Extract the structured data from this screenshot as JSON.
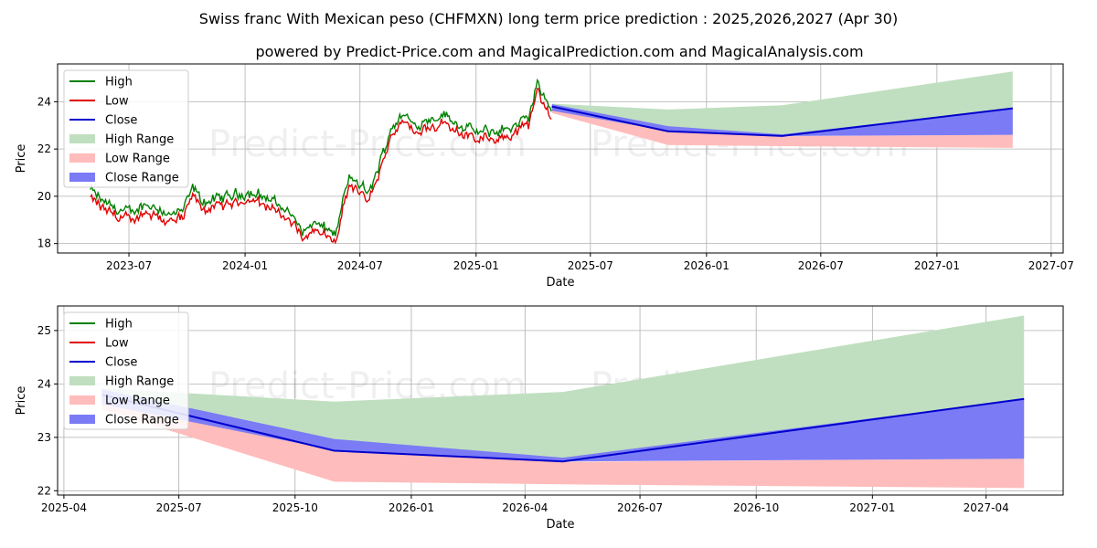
{
  "title": "Swiss franc With Mexican peso (CHFMXN) long term price prediction : 2025,2026,2027 (Apr 30)",
  "subtitle": "powered by Predict-Price.com and MagicalPrediction.com and MagicalAnalysis.com",
  "watermark": "Predict-Price.com",
  "colors": {
    "high": "#008000",
    "low": "#e00000",
    "close": "#0000cc",
    "high_range": "#c0dfc0",
    "low_range": "#ffbcbc",
    "close_range": "#7b7bf5",
    "grid": "#b0b0b0"
  },
  "legend": [
    "High",
    "Low",
    "Close",
    "High Range",
    "Low Range",
    "Close Range"
  ],
  "chart_data": [
    {
      "type": "line",
      "xlabel": "Date",
      "ylabel": "Price",
      "xlim": [
        "2023-03-10",
        "2027-07-20"
      ],
      "ylim": [
        17.6,
        25.6
      ],
      "x_ticks": [
        "2023-07",
        "2024-01",
        "2024-07",
        "2025-01",
        "2025-07",
        "2026-01",
        "2026-07",
        "2027-01",
        "2027-07"
      ],
      "y_ticks": [
        18,
        20,
        22,
        24
      ],
      "grid": true,
      "legend_position": "top-left",
      "history_anchors": [
        [
          "2023-05-01",
          20.1
        ],
        [
          "2023-05-20",
          19.6
        ],
        [
          "2023-06-10",
          19.3
        ],
        [
          "2023-07-05",
          19.1
        ],
        [
          "2023-07-25",
          19.5
        ],
        [
          "2023-08-15",
          19.4
        ],
        [
          "2023-09-05",
          19.0
        ],
        [
          "2023-09-25",
          19.2
        ],
        [
          "2023-10-10",
          20.2
        ],
        [
          "2023-10-25",
          19.6
        ],
        [
          "2023-11-20",
          19.7
        ],
        [
          "2023-12-15",
          19.9
        ],
        [
          "2024-01-10",
          20.0
        ],
        [
          "2024-02-10",
          19.7
        ],
        [
          "2024-03-10",
          19.2
        ],
        [
          "2024-03-25",
          18.6
        ],
        [
          "2024-04-05",
          18.3
        ],
        [
          "2024-04-15",
          18.7
        ],
        [
          "2024-05-10",
          18.4
        ],
        [
          "2024-05-25",
          18.3
        ],
        [
          "2024-06-05",
          19.8
        ],
        [
          "2024-06-15",
          20.6
        ],
        [
          "2024-07-01",
          20.3
        ],
        [
          "2024-07-15",
          19.9
        ],
        [
          "2024-08-05",
          21.5
        ],
        [
          "2024-08-20",
          22.8
        ],
        [
          "2024-09-10",
          23.3
        ],
        [
          "2024-09-25",
          22.8
        ],
        [
          "2024-10-15",
          23.1
        ],
        [
          "2024-11-10",
          23.3
        ],
        [
          "2024-12-10",
          22.8
        ],
        [
          "2025-01-05",
          22.5
        ],
        [
          "2025-02-10",
          22.6
        ],
        [
          "2025-03-10",
          22.9
        ],
        [
          "2025-03-25",
          23.1
        ],
        [
          "2025-04-08",
          24.7
        ],
        [
          "2025-04-18",
          23.9
        ],
        [
          "2025-04-30",
          23.6
        ]
      ],
      "forecast": {
        "dates": [
          "2025-05-01",
          "2025-11-01",
          "2026-05-01",
          "2027-05-01"
        ],
        "close": [
          23.8,
          22.75,
          22.55,
          23.72
        ],
        "high_range": [
          [
            23.8,
            23.92
          ],
          [
            22.78,
            23.67
          ],
          [
            22.58,
            23.85
          ],
          [
            22.6,
            25.28
          ]
        ],
        "low_range": [
          [
            23.52,
            23.78
          ],
          [
            22.17,
            22.73
          ],
          [
            22.12,
            22.54
          ],
          [
            22.05,
            22.6
          ]
        ],
        "close_range": [
          [
            23.62,
            23.9
          ],
          [
            22.76,
            22.97
          ],
          [
            22.55,
            22.62
          ],
          [
            22.6,
            23.72
          ]
        ]
      }
    },
    {
      "type": "line",
      "xlabel": "Date",
      "ylabel": "Price",
      "xlim": [
        "2025-03-27",
        "2027-06-01"
      ],
      "ylim": [
        21.92,
        25.46
      ],
      "x_ticks": [
        "2025-04",
        "2025-07",
        "2025-10",
        "2026-01",
        "2026-04",
        "2026-07",
        "2026-10",
        "2027-01",
        "2027-04"
      ],
      "y_ticks": [
        22,
        23,
        24,
        25
      ],
      "grid": true,
      "legend_position": "top-left"
    }
  ]
}
